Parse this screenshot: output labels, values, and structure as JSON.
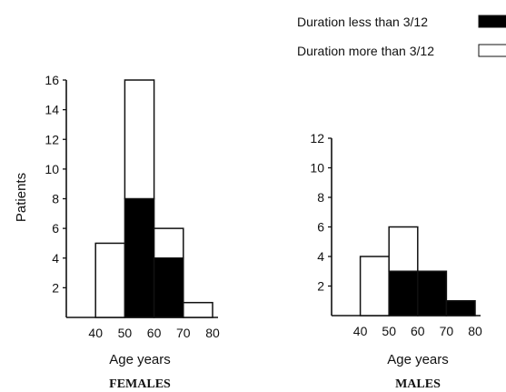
{
  "legend": {
    "short_label": "Duration less than 3/12",
    "long_label": "Duration more than 3/12",
    "placement": "top-right"
  },
  "colors": {
    "short": "#000000",
    "long": "#ffffff",
    "stroke": "#111111"
  },
  "chart_data": [
    {
      "type": "bar",
      "stacked": true,
      "title": "FEMALES",
      "xlabel": "Age years",
      "ylabel": "Patients",
      "x_ticks": [
        40,
        50,
        60,
        70,
        80
      ],
      "y_ticks": [
        2,
        4,
        6,
        8,
        10,
        12,
        14,
        16
      ],
      "xlim": [
        30,
        80
      ],
      "ylim": [
        0,
        16
      ],
      "grid": false,
      "bins": [
        [
          40,
          50
        ],
        [
          50,
          60
        ],
        [
          60,
          70
        ],
        [
          70,
          80
        ]
      ],
      "series": [
        {
          "name": "Duration less than 3/12",
          "values": [
            0,
            8,
            4,
            0
          ]
        },
        {
          "name": "Duration more than 3/12",
          "values": [
            5,
            8,
            2,
            1
          ]
        }
      ]
    },
    {
      "type": "bar",
      "stacked": true,
      "title": "MALES",
      "xlabel": "Age years",
      "ylabel": "",
      "x_ticks": [
        40,
        50,
        60,
        70,
        80
      ],
      "y_ticks": [
        2,
        4,
        6,
        8,
        10,
        12
      ],
      "xlim": [
        30,
        80
      ],
      "ylim": [
        0,
        12
      ],
      "grid": false,
      "bins": [
        [
          40,
          50
        ],
        [
          50,
          60
        ],
        [
          60,
          70
        ],
        [
          70,
          80
        ]
      ],
      "series": [
        {
          "name": "Duration less than 3/12",
          "values": [
            0,
            3,
            3,
            1
          ]
        },
        {
          "name": "Duration more than 3/12",
          "values": [
            4,
            3,
            0,
            0
          ]
        }
      ]
    }
  ]
}
